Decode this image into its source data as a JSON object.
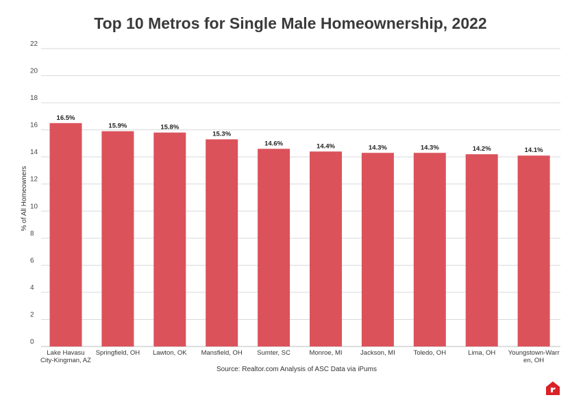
{
  "chart_data": {
    "type": "bar",
    "title": "Top 10 Metros for Single Male Homeownership, 2022",
    "ylabel": "% of All Homeowners",
    "xlabel": "",
    "source": "Source: Realtor.com Analysis of ASC Data via iPums",
    "categories": [
      [
        "Lake Havasu",
        "City-Kingman, AZ"
      ],
      [
        "Springfield, OH"
      ],
      [
        "Lawton, OK"
      ],
      [
        "Mansfield, OH"
      ],
      [
        "Sumter, SC"
      ],
      [
        "Monroe, MI"
      ],
      [
        "Jackson, MI"
      ],
      [
        "Toledo, OH"
      ],
      [
        "Lima, OH"
      ],
      [
        "Youngstown-Warr",
        "en, OH"
      ]
    ],
    "values": [
      16.5,
      15.9,
      15.8,
      15.3,
      14.6,
      14.4,
      14.3,
      14.3,
      14.2,
      14.1
    ],
    "value_labels": [
      "16.5%",
      "15.9%",
      "15.8%",
      "15.3%",
      "14.6%",
      "14.4%",
      "14.3%",
      "14.3%",
      "14.2%",
      "14.1%"
    ],
    "ylim": [
      0,
      22
    ],
    "yticks": [
      0,
      2,
      4,
      6,
      8,
      10,
      12,
      14,
      16,
      18,
      20,
      22
    ],
    "grid": true,
    "bar_color": "#DB525B"
  },
  "logo": {
    "icon": "realtor-logo-icon",
    "color": "#D92228"
  }
}
